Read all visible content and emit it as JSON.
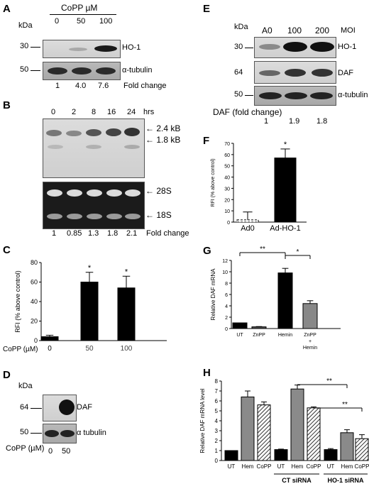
{
  "panels": {
    "A": {
      "letter": "A",
      "unit_prefix": "CoPP",
      "unit": "µM",
      "kda": "kDa",
      "lanes": [
        "0",
        "50",
        "100"
      ],
      "markers": [
        "30",
        "50"
      ],
      "blot_labels": [
        "HO-1",
        "α-tubulin"
      ],
      "fold": [
        "1",
        "4.0",
        "7.6"
      ],
      "fold_label": "Fold change"
    },
    "B": {
      "letter": "B",
      "lanes": [
        "0",
        "2",
        "8",
        "16",
        "24"
      ],
      "time_unit": "hrs",
      "top_bands": [
        "2.4 kB",
        "1.8 kB"
      ],
      "rrna": [
        "28S",
        "18S"
      ],
      "fold": [
        "1",
        "0.85",
        "1.3",
        "1.8",
        "2.1"
      ],
      "fold_label": "Fold change"
    },
    "D": {
      "letter": "D",
      "kda": "kDa",
      "markers": [
        "64",
        "50"
      ],
      "blot_labels": [
        "DAF",
        "α tubulin"
      ],
      "xlabel": "CoPP (µM)",
      "lanes": [
        "0",
        "50"
      ]
    },
    "E": {
      "letter": "E",
      "kda": "kDa",
      "lanes": [
        "A0",
        "100",
        "200"
      ],
      "moi": "MOI",
      "markers": [
        "30",
        "64",
        "50"
      ],
      "blot_labels": [
        "HO-1",
        "DAF",
        "α-tubulin"
      ],
      "fold": [
        "1",
        "1.9",
        "1.8"
      ],
      "fold_label": "DAF (fold change)"
    }
  },
  "chart_data": [
    {
      "panel": "C",
      "type": "bar",
      "categories": [
        "0",
        "50",
        "100"
      ],
      "values": [
        4,
        60,
        54
      ],
      "errors": [
        1.5,
        10,
        12
      ],
      "significance": [
        "",
        "*",
        "*"
      ],
      "bar_colors": [
        "#000000",
        "#000000",
        "#000000"
      ],
      "ylabel": "RFI (% above control)",
      "xlabel": "CoPP (µM)",
      "ylim": [
        0,
        80
      ],
      "yticks": [
        "0",
        "20",
        "40",
        "60",
        "80"
      ]
    },
    {
      "panel": "F",
      "type": "bar",
      "categories": [
        "Ad0",
        "Ad-HO-1"
      ],
      "values": [
        2,
        57
      ],
      "errors": [
        7,
        8
      ],
      "significance": [
        "",
        "*"
      ],
      "bar_styles": [
        "outline-dashed",
        "solid-black"
      ],
      "ylabel": "RFI (% above control)",
      "ylim": [
        0,
        70
      ],
      "yticks": [
        "0",
        "10",
        "20",
        "30",
        "40",
        "50",
        "60",
        "70"
      ]
    },
    {
      "panel": "G",
      "type": "bar",
      "categories": [
        "UT",
        "ZnPP",
        "Hemin",
        "ZnPP\n+\nHemin"
      ],
      "values": [
        1.0,
        0.3,
        9.8,
        4.4
      ],
      "errors": [
        0,
        0.05,
        0.8,
        0.5
      ],
      "bar_colors": [
        "#000000",
        "#555555",
        "#000000",
        "#888888"
      ],
      "ylabel": "Relative DAF mRNA",
      "ylim": [
        0,
        12
      ],
      "yticks": [
        "0",
        "2",
        "4",
        "6",
        "8",
        "10",
        "12"
      ],
      "brackets": [
        {
          "from": 0,
          "to": 2,
          "label": "**"
        },
        {
          "from": 2,
          "to": 3,
          "label": "*"
        }
      ]
    },
    {
      "panel": "H",
      "type": "bar",
      "categories": [
        "UT",
        "Hem",
        "CoPP",
        "UT",
        "Hem",
        "CoPP",
        "UT",
        "Hem",
        "CoPP"
      ],
      "values": [
        1.0,
        6.4,
        5.6,
        1.1,
        7.2,
        5.3,
        1.1,
        2.8,
        2.2
      ],
      "errors": [
        0,
        0.6,
        0.3,
        0.05,
        0.4,
        0.1,
        0.1,
        0.3,
        0.4
      ],
      "bar_styles": [
        "black",
        "gray",
        "hatched",
        "black",
        "gray",
        "hatched",
        "black",
        "gray",
        "hatched"
      ],
      "groups": [
        {
          "label": "",
          "start": 0,
          "end": 2
        },
        {
          "label": "CT siRNA",
          "start": 3,
          "end": 5
        },
        {
          "label": "HO-1 siRNA",
          "start": 6,
          "end": 8
        }
      ],
      "ylabel": "Relative DAF mRNA level",
      "ylim": [
        0,
        8
      ],
      "yticks": [
        "0",
        "1",
        "2",
        "3",
        "4",
        "5",
        "6",
        "7",
        "8"
      ],
      "brackets": [
        {
          "from": 4,
          "to": 7,
          "label": "**"
        },
        {
          "from": 5,
          "to": 8,
          "label": "**"
        }
      ]
    }
  ]
}
